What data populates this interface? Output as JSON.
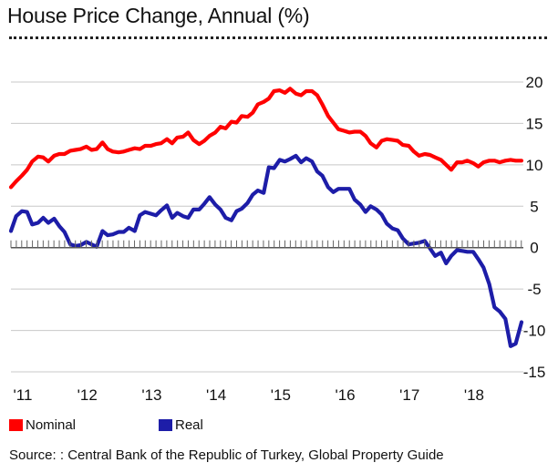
{
  "chart_data": {
    "type": "line",
    "title": "House Price Change, Annual (%)",
    "xlabel": "",
    "ylabel": "",
    "xlim": [
      2011.0,
      2018.92
    ],
    "ylim": [
      -15,
      20
    ],
    "y_ticks": [
      20,
      15,
      10,
      5,
      0,
      -5,
      -10,
      -15
    ],
    "y_tick_labels": [
      "20",
      "15",
      "10",
      "5",
      "0",
      "-5",
      "-10",
      "-15"
    ],
    "x_ticks": [
      2011,
      2012,
      2013,
      2014,
      2015,
      2016,
      2017,
      2018
    ],
    "x_tick_labels": [
      "'11",
      "'12",
      "'13",
      "'14",
      "'15",
      "'16",
      "'17",
      "'18"
    ],
    "grid": "horizontal",
    "series": [
      {
        "name": "Nominal",
        "color": "#ff0000",
        "x": [
          2011.0,
          2011.08,
          2011.17,
          2011.25,
          2011.33,
          2011.42,
          2011.5,
          2011.58,
          2011.67,
          2011.75,
          2011.83,
          2011.92,
          2012.0,
          2012.08,
          2012.17,
          2012.25,
          2012.33,
          2012.42,
          2012.5,
          2012.58,
          2012.67,
          2012.75,
          2012.83,
          2012.92,
          2013.0,
          2013.08,
          2013.17,
          2013.25,
          2013.33,
          2013.42,
          2013.5,
          2013.58,
          2013.67,
          2013.75,
          2013.83,
          2013.92,
          2014.0,
          2014.08,
          2014.17,
          2014.25,
          2014.33,
          2014.42,
          2014.5,
          2014.58,
          2014.67,
          2014.75,
          2014.83,
          2014.92,
          2015.0,
          2015.08,
          2015.17,
          2015.25,
          2015.33,
          2015.42,
          2015.5,
          2015.58,
          2015.67,
          2015.75,
          2015.83,
          2015.92,
          2016.0,
          2016.08,
          2016.17,
          2016.25,
          2016.33,
          2016.42,
          2016.5,
          2016.58,
          2016.67,
          2016.75,
          2016.83,
          2016.92,
          2017.0,
          2017.08,
          2017.17,
          2017.25,
          2017.33,
          2017.42,
          2017.5,
          2017.58,
          2017.67,
          2017.75,
          2017.83,
          2017.92,
          2018.0,
          2018.08,
          2018.17,
          2018.25,
          2018.33,
          2018.42,
          2018.5,
          2018.58,
          2018.67,
          2018.75,
          2018.83,
          2018.92
        ],
        "values": [
          7.3,
          8.0,
          8.7,
          9.4,
          10.4,
          11.0,
          10.9,
          10.4,
          11.1,
          11.3,
          11.3,
          11.7,
          11.8,
          11.9,
          12.2,
          11.8,
          11.9,
          12.7,
          11.9,
          11.6,
          11.5,
          11.6,
          11.8,
          12.0,
          11.9,
          12.3,
          12.3,
          12.5,
          12.6,
          13.1,
          12.6,
          13.3,
          13.4,
          13.9,
          13.0,
          12.5,
          12.9,
          13.5,
          13.9,
          14.6,
          14.4,
          15.2,
          15.1,
          15.9,
          15.8,
          16.3,
          17.3,
          17.6,
          18.0,
          18.9,
          19.0,
          18.7,
          19.2,
          18.6,
          18.4,
          18.9,
          18.9,
          18.4,
          17.3,
          15.9,
          15.1,
          14.3,
          14.1,
          13.9,
          14.0,
          14.0,
          13.5,
          12.6,
          12.1,
          12.9,
          13.1,
          13.0,
          12.9,
          12.4,
          12.3,
          11.6,
          11.1,
          11.3,
          11.2,
          10.9,
          10.6,
          10.0,
          9.4,
          10.3,
          10.3,
          10.5,
          10.2,
          9.8,
          10.3,
          10.5,
          10.5,
          10.3,
          10.5,
          10.6,
          10.5,
          10.5
        ]
      },
      {
        "name": "Real",
        "color": "#1d1da8",
        "x": [
          2011.0,
          2011.08,
          2011.17,
          2011.25,
          2011.33,
          2011.42,
          2011.5,
          2011.58,
          2011.67,
          2011.75,
          2011.83,
          2011.92,
          2012.0,
          2012.08,
          2012.17,
          2012.25,
          2012.33,
          2012.42,
          2012.5,
          2012.58,
          2012.67,
          2012.75,
          2012.83,
          2012.92,
          2013.0,
          2013.08,
          2013.17,
          2013.25,
          2013.33,
          2013.42,
          2013.5,
          2013.58,
          2013.67,
          2013.75,
          2013.83,
          2013.92,
          2014.0,
          2014.08,
          2014.17,
          2014.25,
          2014.33,
          2014.42,
          2014.5,
          2014.58,
          2014.67,
          2014.75,
          2014.83,
          2014.92,
          2015.0,
          2015.08,
          2015.17,
          2015.25,
          2015.33,
          2015.42,
          2015.5,
          2015.58,
          2015.67,
          2015.75,
          2015.83,
          2015.92,
          2016.0,
          2016.08,
          2016.17,
          2016.25,
          2016.33,
          2016.42,
          2016.5,
          2016.58,
          2016.67,
          2016.75,
          2016.83,
          2016.92,
          2017.0,
          2017.08,
          2017.17,
          2017.25,
          2017.33,
          2017.42,
          2017.5,
          2017.58,
          2017.67,
          2017.75,
          2017.83,
          2017.92,
          2018.0,
          2018.08,
          2018.17,
          2018.25,
          2018.33,
          2018.42,
          2018.5,
          2018.58,
          2018.67,
          2018.75,
          2018.83,
          2018.92
        ],
        "values": [
          2.0,
          3.8,
          4.4,
          4.3,
          2.8,
          3.0,
          3.6,
          3.0,
          3.5,
          2.6,
          1.9,
          0.4,
          0.2,
          0.3,
          0.7,
          0.4,
          0.1,
          2.0,
          1.5,
          1.6,
          1.9,
          1.9,
          2.4,
          2.0,
          3.9,
          4.3,
          4.1,
          3.9,
          4.5,
          5.1,
          3.6,
          4.2,
          3.8,
          3.6,
          4.6,
          4.6,
          5.3,
          6.1,
          5.2,
          4.6,
          3.6,
          3.3,
          4.4,
          4.7,
          5.4,
          6.4,
          6.9,
          6.6,
          9.7,
          9.6,
          10.6,
          10.4,
          10.7,
          11.1,
          10.3,
          10.8,
          10.4,
          9.2,
          8.7,
          7.3,
          6.7,
          7.1,
          7.1,
          7.1,
          5.8,
          5.2,
          4.3,
          5.0,
          4.6,
          4.0,
          2.9,
          2.3,
          2.1,
          1.1,
          0.4,
          0.5,
          0.6,
          0.8,
          -0.1,
          -1.0,
          -0.6,
          -1.9,
          -1.0,
          -0.3,
          -0.4,
          -0.5,
          -0.5,
          -1.4,
          -2.4,
          -4.4,
          -7.2,
          -7.7,
          -8.6,
          -11.9,
          -11.6,
          -9.0
        ]
      }
    ],
    "legend": [
      {
        "label": "Nominal",
        "color": "#ff0000"
      },
      {
        "label": "Real",
        "color": "#1d1da8"
      }
    ],
    "legend_position": "bottom-left",
    "source": "Source: : Central Bank of the Republic of Turkey, Global Property Guide"
  }
}
